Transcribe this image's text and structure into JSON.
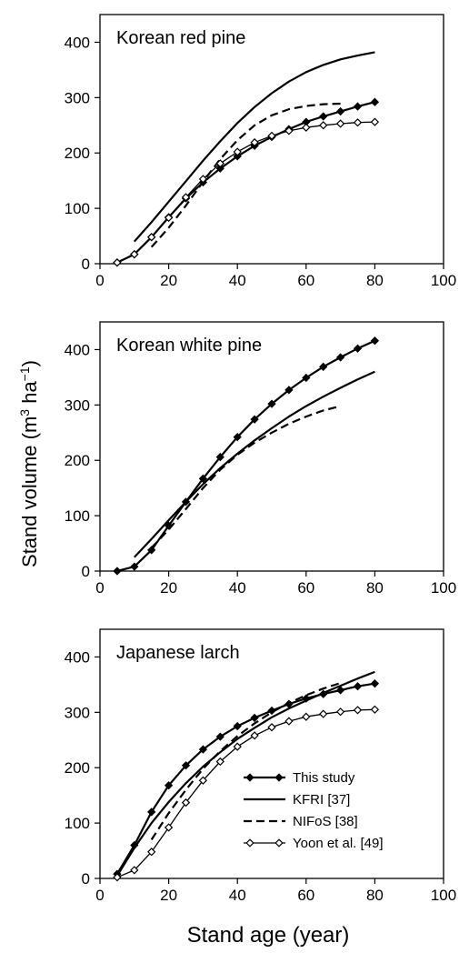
{
  "figure": {
    "ylabel_main": "Stand volume (m",
    "ylabel_sup1": "3",
    "ylabel_mid": " ha",
    "ylabel_sup2": "−1",
    "ylabel_end": ")",
    "xlabel": "Stand age (year)"
  },
  "chart_data": [
    {
      "type": "line",
      "title": "Korean red pine",
      "xlim": [
        0,
        100
      ],
      "ylim": [
        0,
        450
      ],
      "x_ticks": [
        0,
        20,
        40,
        60,
        80,
        100
      ],
      "y_ticks": [
        0,
        100,
        200,
        300,
        400
      ],
      "series": [
        {
          "name": "This study",
          "style": "solid-filled-diamond",
          "x": [
            5,
            10,
            15,
            20,
            25,
            30,
            35,
            40,
            45,
            50,
            55,
            60,
            65,
            70,
            75,
            80
          ],
          "y": [
            2,
            17,
            48,
            84,
            118,
            147,
            172,
            194,
            213,
            229,
            243,
            256,
            266,
            275,
            284,
            292
          ]
        },
        {
          "name": "KFRI [37]",
          "style": "solid",
          "x": [
            10,
            15,
            20,
            25,
            30,
            35,
            40,
            45,
            50,
            55,
            60,
            65,
            70,
            75,
            80
          ],
          "y": [
            40,
            75,
            112,
            149,
            186,
            221,
            254,
            283,
            308,
            329,
            346,
            359,
            369,
            376,
            382
          ]
        },
        {
          "name": "NIFoS [38]",
          "style": "dashed",
          "x": [
            15,
            20,
            25,
            30,
            35,
            40,
            45,
            50,
            55,
            60,
            65,
            70
          ],
          "y": [
            30,
            65,
            105,
            148,
            189,
            223,
            250,
            268,
            279,
            285,
            288,
            289
          ]
        },
        {
          "name": "Yoon et al. [49]",
          "style": "solid-open-diamond",
          "x": [
            5,
            10,
            15,
            20,
            25,
            30,
            35,
            40,
            45,
            50,
            55,
            60,
            65,
            70,
            75,
            80
          ],
          "y": [
            2,
            17,
            48,
            83,
            120,
            153,
            181,
            202,
            219,
            231,
            240,
            246,
            250,
            253,
            255,
            256
          ]
        }
      ]
    },
    {
      "type": "line",
      "title": "Korean white pine",
      "xlim": [
        0,
        100
      ],
      "ylim": [
        0,
        450
      ],
      "x_ticks": [
        0,
        20,
        40,
        60,
        80,
        100
      ],
      "y_ticks": [
        0,
        100,
        200,
        300,
        400
      ],
      "series": [
        {
          "name": "This study",
          "style": "solid-filled-diamond",
          "x": [
            5,
            10,
            15,
            20,
            25,
            30,
            35,
            40,
            45,
            50,
            55,
            60,
            65,
            70,
            75,
            80
          ],
          "y": [
            0,
            8,
            38,
            82,
            125,
            167,
            206,
            242,
            274,
            302,
            327,
            349,
            369,
            386,
            402,
            416
          ]
        },
        {
          "name": "KFRI [37]",
          "style": "solid",
          "x": [
            10,
            15,
            20,
            25,
            30,
            35,
            40,
            45,
            50,
            55,
            60,
            65,
            70,
            75,
            80
          ],
          "y": [
            25,
            58,
            92,
            125,
            157,
            186,
            212,
            236,
            258,
            279,
            298,
            315,
            331,
            346,
            360
          ]
        },
        {
          "name": "NIFoS [38]",
          "style": "dashed",
          "x": [
            15,
            20,
            25,
            30,
            35,
            40,
            45,
            50,
            55,
            60,
            65,
            70
          ],
          "y": [
            42,
            75,
            112,
            150,
            183,
            210,
            232,
            250,
            266,
            279,
            290,
            298
          ]
        }
      ]
    },
    {
      "type": "line",
      "title": "Japanese larch",
      "xlim": [
        0,
        100
      ],
      "ylim": [
        0,
        450
      ],
      "x_ticks": [
        0,
        20,
        40,
        60,
        80,
        100
      ],
      "y_ticks": [
        0,
        100,
        200,
        300,
        400
      ],
      "legend": "lower-right",
      "series": [
        {
          "name": "This study",
          "style": "solid-filled-diamond",
          "x": [
            5,
            10,
            15,
            20,
            25,
            30,
            35,
            40,
            45,
            50,
            55,
            60,
            65,
            70,
            75,
            80
          ],
          "y": [
            8,
            60,
            120,
            168,
            204,
            233,
            256,
            275,
            290,
            303,
            315,
            325,
            333,
            340,
            347,
            352
          ]
        },
        {
          "name": "KFRI [37]",
          "style": "solid",
          "x": [
            5,
            10,
            15,
            20,
            25,
            30,
            35,
            40,
            45,
            50,
            55,
            60,
            65,
            70,
            75,
            80
          ],
          "y": [
            5,
            55,
            100,
            138,
            172,
            202,
            228,
            252,
            272,
            291,
            307,
            321,
            335,
            348,
            361,
            373
          ]
        },
        {
          "name": "NIFoS [38]",
          "style": "dashed",
          "x": [
            15,
            20,
            25,
            30,
            35,
            40,
            45,
            50,
            55,
            60,
            65,
            70
          ],
          "y": [
            70,
            118,
            160,
            198,
            230,
            257,
            280,
            300,
            317,
            331,
            343,
            353
          ]
        },
        {
          "name": "Yoon et al. [49]",
          "style": "solid-open-diamond",
          "x": [
            5,
            10,
            15,
            20,
            25,
            30,
            35,
            40,
            45,
            50,
            55,
            60,
            65,
            70,
            75,
            80
          ],
          "y": [
            2,
            15,
            48,
            92,
            137,
            177,
            211,
            238,
            258,
            273,
            284,
            292,
            297,
            301,
            304,
            305
          ]
        }
      ]
    }
  ]
}
